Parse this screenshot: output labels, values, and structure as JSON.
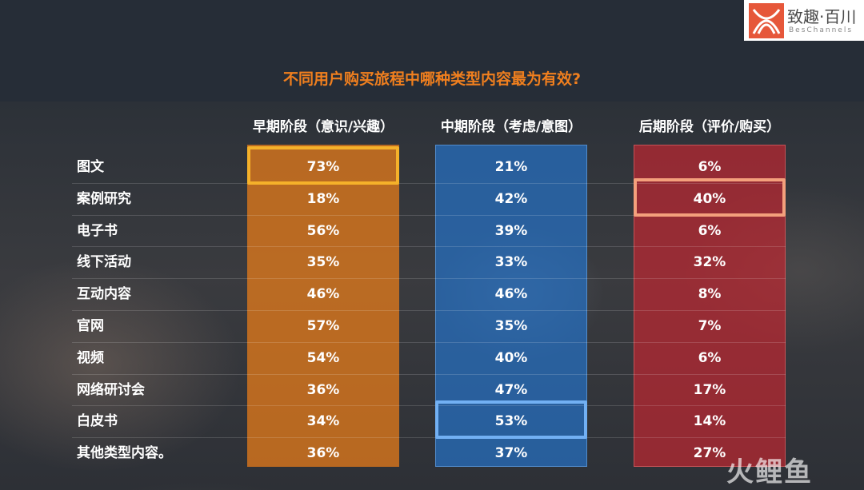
{
  "logo": {
    "name_cn": "致趣·百川",
    "name_en": "BesChannels"
  },
  "watermark": "火鲤鱼",
  "chart_data": {
    "type": "table",
    "title": "不同用户购买旅程中哪种类型内容最为有效?",
    "columns": [
      "早期阶段（意识/兴趣）",
      "中期阶段（考虑/意图）",
      "后期阶段（评价/购买）"
    ],
    "rows": [
      {
        "label": "图文",
        "values": [
          "73%",
          "21%",
          "6%"
        ]
      },
      {
        "label": "案例研究",
        "values": [
          "18%",
          "42%",
          "40%"
        ]
      },
      {
        "label": "电子书",
        "values": [
          "56%",
          "39%",
          "6%"
        ]
      },
      {
        "label": "线下活动",
        "values": [
          "35%",
          "33%",
          "32%"
        ]
      },
      {
        "label": "互动内容",
        "values": [
          "46%",
          "46%",
          "8%"
        ]
      },
      {
        "label": "官网",
        "values": [
          "57%",
          "35%",
          "7%"
        ]
      },
      {
        "label": "视频",
        "values": [
          "54%",
          "40%",
          "6%"
        ]
      },
      {
        "label": "网络研讨会",
        "values": [
          "36%",
          "47%",
          "17%"
        ]
      },
      {
        "label": "白皮书",
        "values": [
          "34%",
          "53%",
          "14%"
        ]
      },
      {
        "label": "其他类型内容。",
        "values": [
          "36%",
          "37%",
          "27%"
        ]
      }
    ],
    "highlights": [
      {
        "row": "图文",
        "column": "早期阶段（意识/兴趣）",
        "value": "73%"
      },
      {
        "row": "案例研究",
        "column": "后期阶段（评价/购买）",
        "value": "40%"
      },
      {
        "row": "白皮书",
        "column": "中期阶段（考虑/意图）",
        "value": "53%"
      }
    ],
    "colors": {
      "title": "#f07f1e",
      "early": "#e87c1a",
      "mid": "#2670c4",
      "late": "#c42630",
      "highlight_early": "#f5b12a",
      "highlight_mid": "#72b0f3",
      "highlight_late": "#f4a07c"
    }
  }
}
